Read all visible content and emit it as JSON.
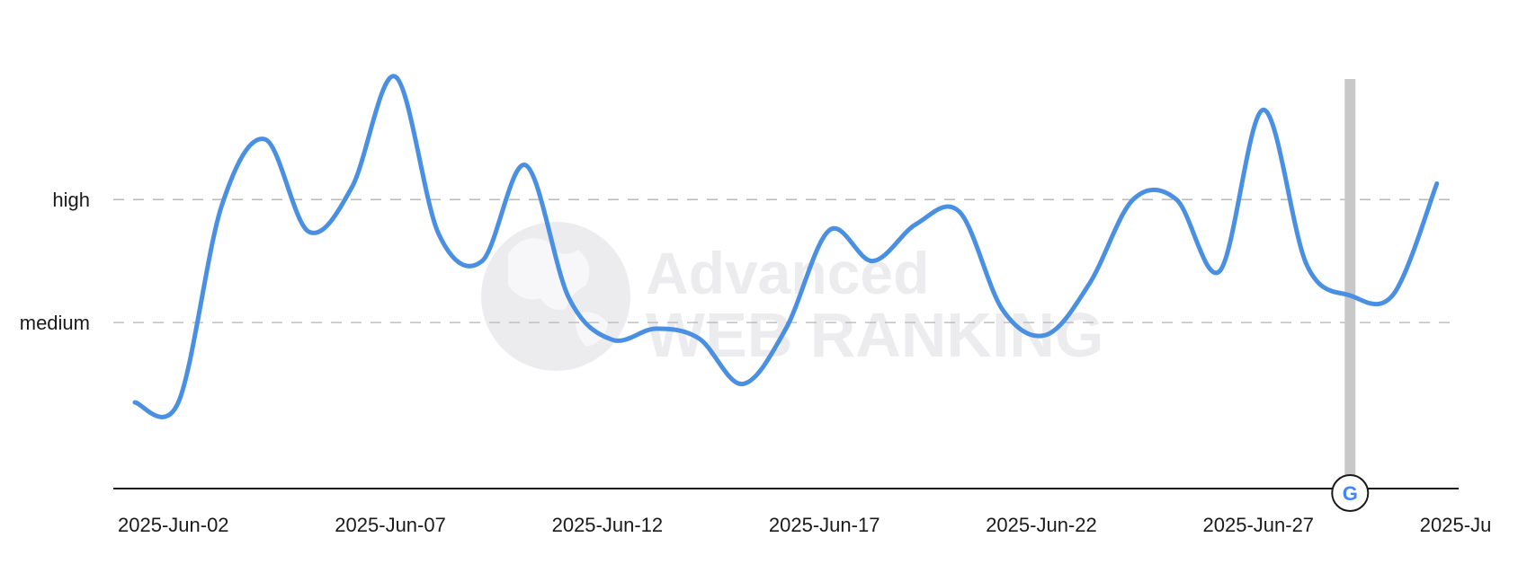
{
  "chart_data": {
    "type": "line",
    "title": "",
    "xlabel": "",
    "ylabel": "",
    "y_axis": {
      "scale": "categorical-levels",
      "ticks": [
        {
          "label": "high",
          "value": 2
        },
        {
          "label": "medium",
          "value": 1
        }
      ],
      "range": [
        -0.35,
        2.98
      ],
      "grid": "dashed"
    },
    "x_axis": {
      "type": "date",
      "range": [
        "2025-06-01",
        "2025-07-02"
      ],
      "ticks": [
        "2025-Jun-02",
        "2025-Jun-07",
        "2025-Jun-12",
        "2025-Jun-17",
        "2025-Jun-22",
        "2025-Jun-27",
        "2025-Ju"
      ]
    },
    "series": [
      {
        "color": "#4a90e2",
        "points": [
          [
            "2025-06-01",
            0.35
          ],
          [
            "2025-06-02",
            0.35
          ],
          [
            "2025-06-03",
            1.95
          ],
          [
            "2025-06-04",
            2.49
          ],
          [
            "2025-06-05",
            1.74
          ],
          [
            "2025-06-06",
            2.1
          ],
          [
            "2025-06-07",
            3.0
          ],
          [
            "2025-06-08",
            1.72
          ],
          [
            "2025-06-09",
            1.5
          ],
          [
            "2025-06-10",
            2.28
          ],
          [
            "2025-06-11",
            1.2
          ],
          [
            "2025-06-12",
            0.86
          ],
          [
            "2025-06-13",
            0.95
          ],
          [
            "2025-06-14",
            0.87
          ],
          [
            "2025-06-15",
            0.5
          ],
          [
            "2025-06-16",
            0.95
          ],
          [
            "2025-06-17",
            1.75
          ],
          [
            "2025-06-18",
            1.5
          ],
          [
            "2025-06-19",
            1.8
          ],
          [
            "2025-06-20",
            1.9
          ],
          [
            "2025-06-21",
            1.1
          ],
          [
            "2025-06-22",
            0.9
          ],
          [
            "2025-06-23",
            1.32
          ],
          [
            "2025-06-24",
            2.0
          ],
          [
            "2025-06-25",
            2.0
          ],
          [
            "2025-06-26",
            1.42
          ],
          [
            "2025-06-27",
            2.73
          ],
          [
            "2025-06-28",
            1.47
          ],
          [
            "2025-06-29",
            1.22
          ],
          [
            "2025-06-30",
            1.23
          ],
          [
            "2025-07-01",
            2.13
          ]
        ]
      }
    ],
    "annotations": [
      {
        "date": "2025-06-29",
        "marker": "google-update",
        "icon": "google-g-icon",
        "band_color": "#c8c8c8"
      }
    ],
    "watermark": {
      "line1": "Advanced",
      "line2": "WEB RANKING",
      "color": "#ececef"
    },
    "legend": "none"
  }
}
